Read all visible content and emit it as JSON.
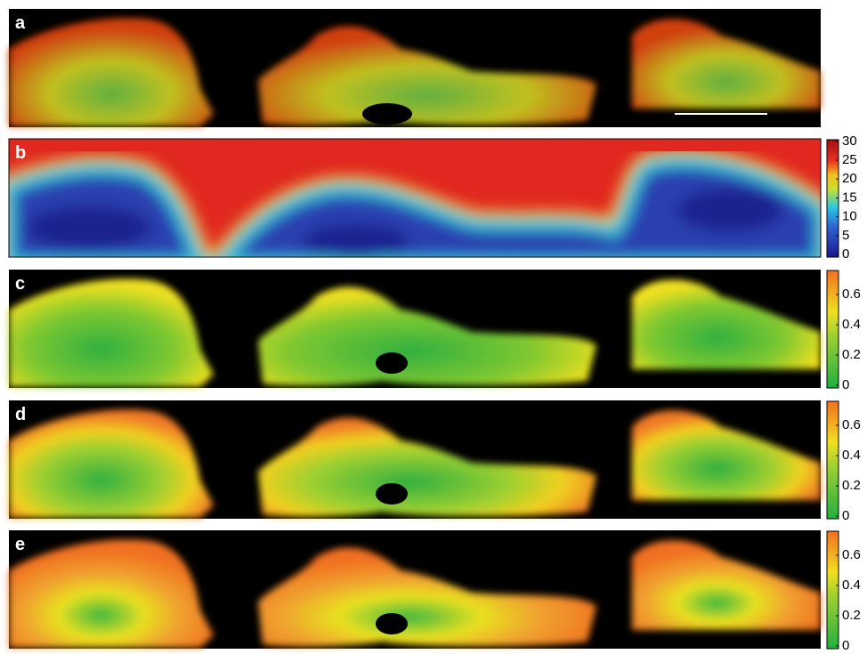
{
  "panels": [
    {
      "label": "a"
    },
    {
      "label": "b",
      "colorbar_ticks": [
        0,
        5,
        10,
        15,
        20,
        25,
        30
      ]
    },
    {
      "label": "c",
      "colorbar_ticks": [
        0,
        0.2,
        0.4,
        0.6
      ]
    },
    {
      "label": "d",
      "colorbar_ticks": [
        0,
        0.2,
        0.4,
        0.6
      ]
    },
    {
      "label": "e",
      "colorbar_ticks": [
        0,
        0.2,
        0.4,
        0.6
      ]
    }
  ]
}
